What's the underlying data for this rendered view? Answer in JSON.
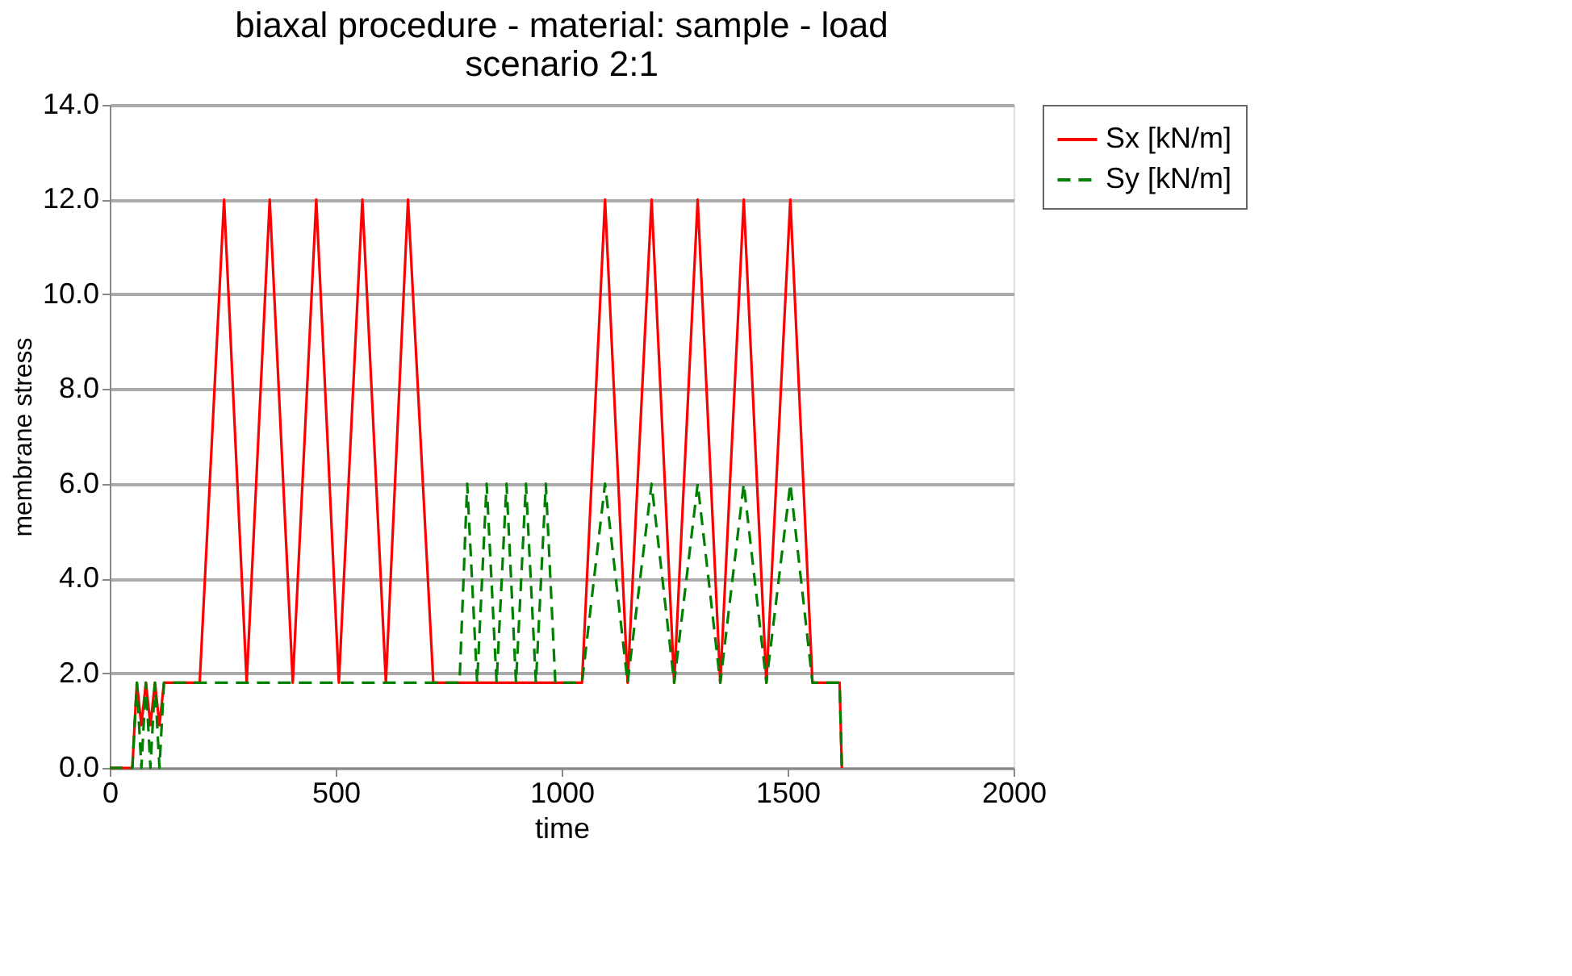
{
  "chart_data": {
    "type": "line",
    "title": "biaxal procedure - material: sample - load",
    "subtitle": "scenario 2:1",
    "xlabel": "time",
    "ylabel": "membrane stress",
    "xlim": [
      0,
      2000
    ],
    "xticks": [
      0,
      500,
      1000,
      1500,
      2000
    ],
    "ylim": [
      0,
      14
    ],
    "yticks": [
      {
        "value": 0,
        "label": "0.0"
      },
      {
        "value": 2,
        "label": "2.0"
      },
      {
        "value": 4,
        "label": "4.0"
      },
      {
        "value": 6,
        "label": "6.0"
      },
      {
        "value": 8,
        "label": "8.0"
      },
      {
        "value": 10,
        "label": "10.0"
      },
      {
        "value": 12,
        "label": "12.0"
      },
      {
        "value": 14,
        "label": "14.0"
      }
    ],
    "grid": "y",
    "legend": "right",
    "marker": "none",
    "series": [
      {
        "name": "Sx [kN/m]",
        "color": "#ff0000",
        "line_style": "solid",
        "x": [
          0,
          50,
          60,
          70,
          80,
          90,
          100,
          110,
          120,
          130,
          199,
          253,
          303,
          354,
          405,
          457,
          507,
          559,
          611,
          660,
          716,
          1045,
          1096,
          1146,
          1199,
          1249,
          1301,
          1351,
          1403,
          1453,
          1506,
          1555,
          1615,
          1620
        ],
        "values": [
          0,
          0,
          1.8,
          0.9,
          1.8,
          0.9,
          1.8,
          0.9,
          1.8,
          1.8,
          1.8,
          12,
          1.8,
          12,
          1.8,
          12,
          1.8,
          12,
          1.8,
          12,
          1.8,
          1.8,
          12,
          1.8,
          12,
          1.8,
          12,
          1.8,
          12,
          1.8,
          12,
          1.8,
          1.8,
          0
        ]
      },
      {
        "name": "Sy [kN/m]",
        "color": "#008000",
        "line_style": "dashed",
        "x": [
          0,
          50,
          60,
          70,
          80,
          90,
          100,
          110,
          120,
          130,
          774,
          791,
          813,
          834,
          856,
          878,
          899,
          921,
          943,
          965,
          986,
          1045,
          1096,
          1146,
          1199,
          1249,
          1301,
          1351,
          1403,
          1453,
          1506,
          1555,
          1615,
          1620
        ],
        "values": [
          0,
          0,
          1.8,
          0,
          1.8,
          0,
          1.8,
          0,
          1.8,
          1.8,
          1.8,
          6,
          1.8,
          6,
          1.8,
          6,
          1.8,
          6,
          1.8,
          6,
          1.8,
          1.8,
          6,
          1.8,
          6,
          1.8,
          6,
          1.8,
          6,
          1.8,
          6,
          1.8,
          1.8,
          0
        ]
      }
    ]
  }
}
